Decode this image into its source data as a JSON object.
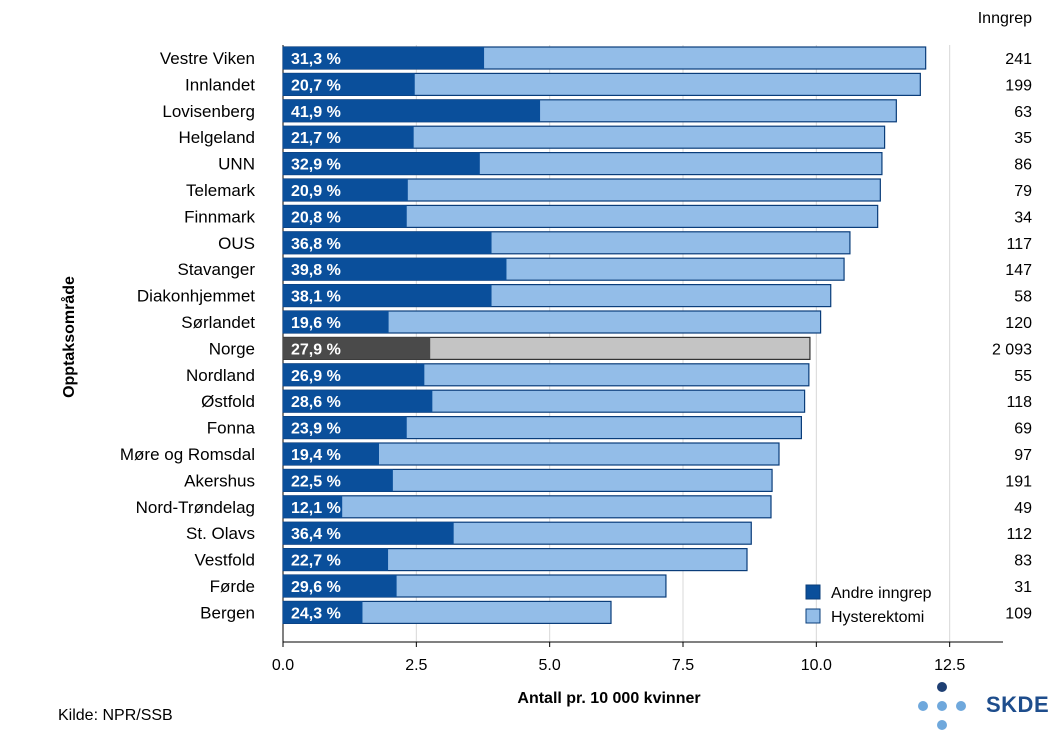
{
  "chart_data": {
    "type": "bar",
    "orientation": "horizontal",
    "stacked": true,
    "ylabel": "Opptaksområde",
    "xlabel": "Antall pr. 10 000 kvinner",
    "xlim": [
      0,
      13.5
    ],
    "x_ticks": [
      "0.0",
      "2.5",
      "5.0",
      "7.5",
      "10.0",
      "12.5"
    ],
    "x_tick_values": [
      0,
      2.5,
      5.0,
      7.5,
      10.0,
      12.5
    ],
    "right_header": "Inngrep",
    "categories": [
      "Vestre Viken",
      "Innlandet",
      "Lovisenberg",
      "Helgeland",
      "UNN",
      "Telemark",
      "Finnmark",
      "OUS",
      "Stavanger",
      "Diakonhjemmet",
      "Sørlandet",
      "Norge",
      "Nordland",
      "Østfold",
      "Fonna",
      "Møre og Romsdal",
      "Akershus",
      "Nord-Trøndelag",
      "St. Olavs",
      "Vestfold",
      "Førde",
      "Bergen"
    ],
    "totals": [
      12.05,
      11.95,
      11.5,
      11.28,
      11.23,
      11.2,
      11.15,
      10.63,
      10.52,
      10.27,
      10.08,
      9.88,
      9.86,
      9.78,
      9.72,
      9.3,
      9.17,
      9.15,
      8.78,
      8.7,
      7.18,
      6.15
    ],
    "series": [
      {
        "name": "Andre inngrep",
        "values": [
          3.77,
          2.47,
          4.82,
          2.45,
          3.69,
          2.34,
          2.32,
          3.91,
          4.19,
          3.91,
          1.98,
          2.76,
          2.65,
          2.8,
          2.32,
          1.8,
          2.06,
          1.11,
          3.2,
          1.97,
          2.13,
          1.49
        ]
      },
      {
        "name": "Hysterektomi",
        "values": [
          8.28,
          9.48,
          6.68,
          8.83,
          7.54,
          8.86,
          8.83,
          6.72,
          6.33,
          6.36,
          8.1,
          7.12,
          7.21,
          6.98,
          7.4,
          7.5,
          7.11,
          8.04,
          5.58,
          6.73,
          5.05,
          4.66
        ]
      }
    ],
    "pct_labels": [
      "31,3 %",
      "20,7 %",
      "41,9 %",
      "21,7 %",
      "32,9 %",
      "20,9 %",
      "20,8 %",
      "36,8 %",
      "39,8 %",
      "38,1 %",
      "19,6 %",
      "27,9 %",
      "26,9 %",
      "28,6 %",
      "23,9 %",
      "19,4 %",
      "22,5 %",
      "12,1 %",
      "36,4 %",
      "22,7 %",
      "29,6 %",
      "24,3 %"
    ],
    "inngrep": [
      "241",
      "199",
      "63",
      "35",
      "86",
      "79",
      "34",
      "117",
      "147",
      "58",
      "120",
      "2 093",
      "55",
      "118",
      "69",
      "97",
      "191",
      "49",
      "112",
      "83",
      "31",
      "109"
    ],
    "highlight": "Norge",
    "legend": [
      "Andre inngrep",
      "Hysterektomi"
    ],
    "legend_position": "bottom-right",
    "colors": {
      "andre": "#0a4f9b",
      "hyst": "#93bde8",
      "andre_highlight": "#4a4a4a",
      "hyst_highlight": "#c4c4c4",
      "bar_border": "#0a3d7a",
      "highlight_border": "#333333"
    }
  },
  "source": "Kilde: NPR/SSB",
  "logo": {
    "text": "SKDE",
    "dot_dark": "#1e3f73",
    "dot_light": "#6fa8dc"
  }
}
